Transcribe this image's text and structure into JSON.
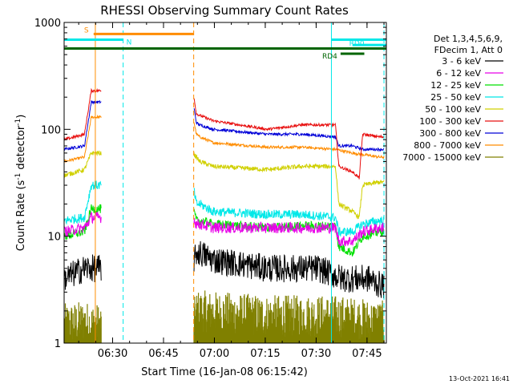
{
  "chart_data": {
    "type": "line",
    "title": "RHESSI Observing Summary Count Rates",
    "xlabel": "Start Time (16-Jan-08 06:15:42)",
    "ylabel": "Count Rate (s⁻¹ detector⁻¹)",
    "ylabel_parts": [
      "Count Rate (s",
      "-1",
      " detector",
      "-1",
      ")"
    ],
    "y_scale": "log",
    "ylim": [
      1,
      1000
    ],
    "xlim_minutes": [
      0,
      95
    ],
    "x_ticks": [
      {
        "label": "06:30",
        "min": 14.3
      },
      {
        "label": "06:45",
        "min": 29.3
      },
      {
        "label": "07:00",
        "min": 44.3
      },
      {
        "label": "07:15",
        "min": 59.3
      },
      {
        "label": "07:30",
        "min": 74.3
      },
      {
        "label": "07:45",
        "min": 89.3
      }
    ],
    "y_ticks": [
      {
        "label": "1",
        "value": 1
      },
      {
        "label": "10",
        "value": 10
      },
      {
        "label": "100",
        "value": 100
      },
      {
        "label": "1000",
        "value": 1000
      }
    ],
    "legend_header": [
      "Det 1,3,4,5,6,9,",
      "FDecim 1, Att 0"
    ],
    "legend_position": "right",
    "series": [
      {
        "name": "3 - 6 keV",
        "color": "#000000",
        "noise": 0.3,
        "fill": false,
        "values": [
          [
            0,
            4
          ],
          [
            6,
            5
          ],
          [
            7,
            5
          ],
          [
            38,
            5
          ],
          [
            39,
            7
          ],
          [
            40,
            7
          ],
          [
            44,
            6
          ],
          [
            60,
            5
          ],
          [
            75,
            5
          ],
          [
            82,
            4
          ],
          [
            84,
            4
          ],
          [
            85,
            4
          ],
          [
            90,
            4
          ],
          [
            93,
            3.5
          ]
        ]
      },
      {
        "name": "6 - 12 keV",
        "color": "#e800e8",
        "noise": 0.12,
        "fill": false,
        "values": [
          [
            0,
            11
          ],
          [
            6,
            12
          ],
          [
            8,
            15
          ],
          [
            38,
            15
          ],
          [
            39,
            13
          ],
          [
            40,
            13
          ],
          [
            44,
            12
          ],
          [
            60,
            12
          ],
          [
            70,
            12
          ],
          [
            80,
            12
          ],
          [
            81,
            9
          ],
          [
            85,
            9
          ],
          [
            88,
            11
          ],
          [
            93,
            12
          ]
        ]
      },
      {
        "name": "12 - 25 keV",
        "color": "#00e000",
        "noise": 0.1,
        "fill": false,
        "values": [
          [
            0,
            10
          ],
          [
            6,
            11
          ],
          [
            8,
            18
          ],
          [
            38,
            18
          ],
          [
            39,
            14
          ],
          [
            40,
            14
          ],
          [
            44,
            13
          ],
          [
            60,
            12
          ],
          [
            70,
            12.5
          ],
          [
            80,
            12.5
          ],
          [
            81,
            8
          ],
          [
            85,
            7
          ],
          [
            88,
            10
          ],
          [
            93,
            11
          ]
        ]
      },
      {
        "name": "25 - 50 keV",
        "color": "#00e8e8",
        "noise": 0.1,
        "fill": false,
        "values": [
          [
            0,
            14
          ],
          [
            6,
            15
          ],
          [
            8,
            30
          ],
          [
            38,
            30
          ],
          [
            39,
            20
          ],
          [
            40,
            20
          ],
          [
            44,
            17
          ],
          [
            60,
            16
          ],
          [
            70,
            16
          ],
          [
            80,
            15
          ],
          [
            81,
            11
          ],
          [
            85,
            11
          ],
          [
            88,
            13
          ],
          [
            93,
            14
          ]
        ]
      },
      {
        "name": "50 - 100 keV",
        "color": "#d0d000",
        "noise": 0.05,
        "fill": false,
        "values": [
          [
            0,
            37
          ],
          [
            6,
            42
          ],
          [
            8,
            60
          ],
          [
            38,
            60
          ],
          [
            39,
            55
          ],
          [
            40,
            50
          ],
          [
            44,
            45
          ],
          [
            60,
            42
          ],
          [
            70,
            45
          ],
          [
            80,
            45
          ],
          [
            81,
            20
          ],
          [
            85,
            17
          ],
          [
            87,
            15
          ],
          [
            88,
            30
          ],
          [
            93,
            32
          ]
        ]
      },
      {
        "name": "100 - 300 keV",
        "color": "#e81010",
        "noise": 0.03,
        "fill": false,
        "values": [
          [
            0,
            80
          ],
          [
            6,
            90
          ],
          [
            8,
            230
          ],
          [
            38,
            230
          ],
          [
            39,
            140
          ],
          [
            40,
            135
          ],
          [
            44,
            120
          ],
          [
            60,
            100
          ],
          [
            70,
            110
          ],
          [
            80,
            110
          ],
          [
            81,
            45
          ],
          [
            85,
            40
          ],
          [
            87,
            35
          ],
          [
            88,
            90
          ],
          [
            93,
            85
          ]
        ]
      },
      {
        "name": "300 - 800 keV",
        "color": "#0000d8",
        "noise": 0.03,
        "fill": false,
        "values": [
          [
            0,
            65
          ],
          [
            6,
            70
          ],
          [
            8,
            180
          ],
          [
            38,
            180
          ],
          [
            39,
            115
          ],
          [
            40,
            110
          ],
          [
            44,
            100
          ],
          [
            60,
            90
          ],
          [
            70,
            90
          ],
          [
            80,
            85
          ],
          [
            81,
            70
          ],
          [
            85,
            70
          ],
          [
            88,
            65
          ],
          [
            93,
            65
          ]
        ]
      },
      {
        "name": "800 - 7000 keV",
        "color": "#ff8c00",
        "noise": 0.03,
        "fill": false,
        "values": [
          [
            0,
            50
          ],
          [
            6,
            55
          ],
          [
            8,
            130
          ],
          [
            38,
            130
          ],
          [
            39,
            90
          ],
          [
            40,
            85
          ],
          [
            44,
            75
          ],
          [
            60,
            68
          ],
          [
            70,
            68
          ],
          [
            80,
            65
          ],
          [
            85,
            60
          ],
          [
            93,
            55
          ]
        ]
      },
      {
        "name": "7000 - 15000 keV",
        "color": "#808000",
        "noise": 0.45,
        "fill": true,
        "values": [
          [
            0,
            1.5
          ],
          [
            6,
            1.6
          ],
          [
            8,
            1.5
          ],
          [
            38,
            1.5
          ],
          [
            39,
            2
          ],
          [
            40,
            2
          ],
          [
            60,
            1.8
          ],
          [
            80,
            1.8
          ],
          [
            93,
            1.6
          ]
        ]
      }
    ],
    "annotations": {
      "bars": [
        {
          "label": "S",
          "color": "#ff8c00",
          "x_min": [
            8.7,
            38.2
          ],
          "level": 780
        },
        {
          "label": "N",
          "color": "#00e8e8",
          "x_min": [
            0,
            17.4
          ],
          "level": 690
        },
        {
          "label": "",
          "color": "#00e8e8",
          "x_min": [
            78.8,
            95
          ],
          "level": 690
        },
        {
          "label": "RD0",
          "color": "#00e8e8",
          "x_min": [
            85,
            95
          ],
          "level": 615
        },
        {
          "label": "",
          "color": "#006400",
          "x_min": [
            0,
            95
          ],
          "level": 570
        },
        {
          "label": "RD4",
          "color": "#006400",
          "x_min": [
            81.5,
            88.5
          ],
          "level": 510
        }
      ],
      "vlines": [
        {
          "x_min": 0,
          "color": "#00e8e8",
          "dash": false
        },
        {
          "x_min": 9.2,
          "color": "#ff8c00",
          "dash": false
        },
        {
          "x_min": 17.4,
          "color": "#00e8e8",
          "dash": true
        },
        {
          "x_min": 38.2,
          "color": "#ff8c00",
          "dash": true
        },
        {
          "x_min": 78.8,
          "color": "#00e8e8",
          "dash": false
        },
        {
          "x_min": 94.3,
          "color": "#00e8e8",
          "dash": true
        }
      ]
    }
  },
  "footer_date": "13-Oct-2021 16:41"
}
